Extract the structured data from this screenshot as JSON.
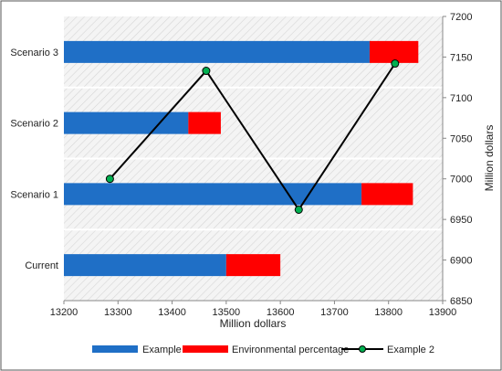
{
  "chart_data": {
    "type": "bar",
    "orientation": "horizontal",
    "categories": [
      "Current",
      "Scenario 1",
      "Scenario 2",
      "Scenario 3"
    ],
    "series": [
      {
        "name": "Example 1",
        "type": "stacked-bar",
        "values": [
          13500,
          13750,
          13430,
          13765
        ],
        "color": "#1f6fc6"
      },
      {
        "name": "Environmental percentage",
        "type": "stacked-bar",
        "values": [
          100,
          95,
          60,
          90
        ],
        "color": "#ff0000"
      },
      {
        "name": "Example 2",
        "type": "line",
        "axis": "secondary-y",
        "x": [
          13285,
          13463,
          13634,
          13812
        ],
        "y": [
          7000,
          7133,
          6962,
          7142
        ],
        "color": "#000000",
        "marker_color": "#00b050"
      }
    ],
    "xlabel": "Million dollars",
    "ylabel_right": "Million dollars",
    "xlim": [
      13200,
      13900
    ],
    "xticks": [
      "13200",
      "13300",
      "13400",
      "13500",
      "13600",
      "13700",
      "13800",
      "13900"
    ],
    "y2lim": [
      6850,
      7200
    ],
    "y2ticks": [
      "6850",
      "6900",
      "6950",
      "7000",
      "7050",
      "7100",
      "7150",
      "7200"
    ],
    "grid": false,
    "legend_position": "bottom"
  }
}
